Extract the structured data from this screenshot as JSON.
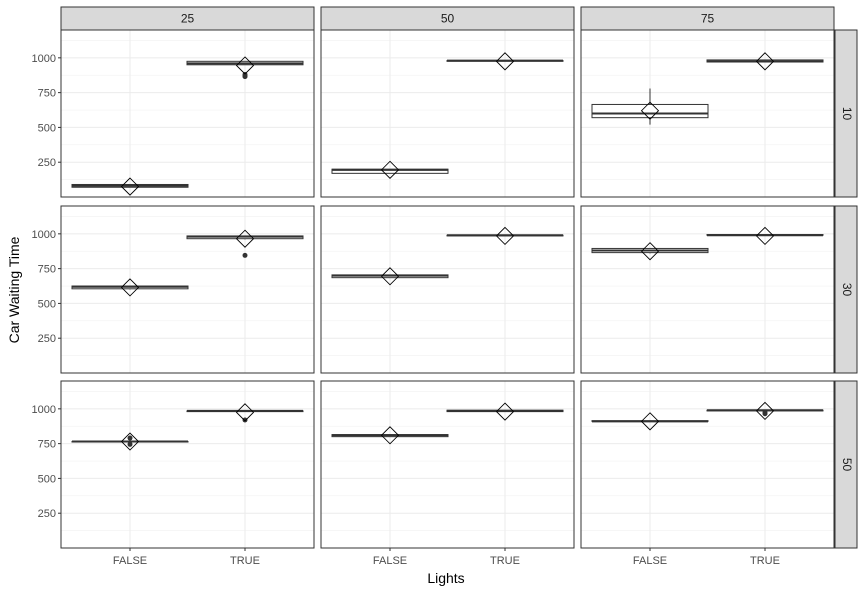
{
  "chart_data": {
    "type": "boxplot",
    "xlabel": "Lights",
    "ylabel": "Car Waiting Time",
    "ylim": [
      0,
      1200
    ],
    "yticks": [
      250,
      500,
      750,
      1000
    ],
    "categories": [
      "FALSE",
      "TRUE"
    ],
    "col_facets": [
      "25",
      "50",
      "75"
    ],
    "row_facets": [
      "10",
      "30",
      "50"
    ],
    "grid": true,
    "panels": [
      {
        "row": "10",
        "col": "25",
        "boxes": [
          {
            "x": "FALSE",
            "min": 70,
            "q1": 70,
            "median": 80,
            "q3": 90,
            "max": 90,
            "mean": 75,
            "outliers": []
          },
          {
            "x": "TRUE",
            "min": 950,
            "q1": 950,
            "median": 960,
            "q3": 975,
            "max": 975,
            "mean": 945,
            "outliers": [
              865,
              870,
              880
            ]
          }
        ]
      },
      {
        "row": "10",
        "col": "50",
        "boxes": [
          {
            "x": "FALSE",
            "min": 170,
            "q1": 170,
            "median": 195,
            "q3": 200,
            "max": 200,
            "mean": 195,
            "outliers": []
          },
          {
            "x": "TRUE",
            "min": 975,
            "q1": 975,
            "median": 980,
            "q3": 980,
            "max": 980,
            "mean": 975,
            "outliers": []
          }
        ]
      },
      {
        "row": "10",
        "col": "75",
        "boxes": [
          {
            "x": "FALSE",
            "min": 520,
            "q1": 570,
            "median": 600,
            "q3": 665,
            "max": 780,
            "mean": 620,
            "outliers": []
          },
          {
            "x": "TRUE",
            "min": 970,
            "q1": 970,
            "median": 975,
            "q3": 985,
            "max": 985,
            "mean": 975,
            "outliers": []
          }
        ]
      },
      {
        "row": "30",
        "col": "25",
        "boxes": [
          {
            "x": "FALSE",
            "min": 600,
            "q1": 605,
            "median": 620,
            "q3": 625,
            "max": 625,
            "mean": 615,
            "outliers": []
          },
          {
            "x": "TRUE",
            "min": 960,
            "q1": 965,
            "median": 980,
            "q3": 985,
            "max": 985,
            "mean": 965,
            "outliers": [
              845
            ]
          }
        ]
      },
      {
        "row": "30",
        "col": "50",
        "boxes": [
          {
            "x": "FALSE",
            "min": 685,
            "q1": 685,
            "median": 700,
            "q3": 705,
            "max": 705,
            "mean": 695,
            "outliers": []
          },
          {
            "x": "TRUE",
            "min": 985,
            "q1": 985,
            "median": 990,
            "q3": 990,
            "max": 990,
            "mean": 985,
            "outliers": []
          }
        ]
      },
      {
        "row": "30",
        "col": "75",
        "boxes": [
          {
            "x": "FALSE",
            "min": 860,
            "q1": 865,
            "median": 880,
            "q3": 895,
            "max": 895,
            "mean": 875,
            "outliers": []
          },
          {
            "x": "TRUE",
            "min": 990,
            "q1": 990,
            "median": 990,
            "q3": 995,
            "max": 995,
            "mean": 985,
            "outliers": []
          }
        ]
      },
      {
        "row": "50",
        "col": "25",
        "boxes": [
          {
            "x": "FALSE",
            "min": 765,
            "q1": 765,
            "median": 765,
            "q3": 765,
            "max": 765,
            "mean": 765,
            "outliers": [
              745,
              790
            ]
          },
          {
            "x": "TRUE",
            "min": 980,
            "q1": 980,
            "median": 985,
            "q3": 985,
            "max": 985,
            "mean": 975,
            "outliers": [
              920
            ]
          }
        ]
      },
      {
        "row": "50",
        "col": "50",
        "boxes": [
          {
            "x": "FALSE",
            "min": 800,
            "q1": 800,
            "median": 810,
            "q3": 815,
            "max": 815,
            "mean": 810,
            "outliers": []
          },
          {
            "x": "TRUE",
            "min": 980,
            "q1": 980,
            "median": 985,
            "q3": 990,
            "max": 990,
            "mean": 980,
            "outliers": []
          }
        ]
      },
      {
        "row": "50",
        "col": "75",
        "boxes": [
          {
            "x": "FALSE",
            "min": 910,
            "q1": 910,
            "median": 910,
            "q3": 915,
            "max": 915,
            "mean": 910,
            "outliers": []
          },
          {
            "x": "TRUE",
            "min": 985,
            "q1": 985,
            "median": 990,
            "q3": 990,
            "max": 990,
            "mean": 985,
            "outliers": [
              965,
              975
            ]
          }
        ]
      }
    ]
  }
}
